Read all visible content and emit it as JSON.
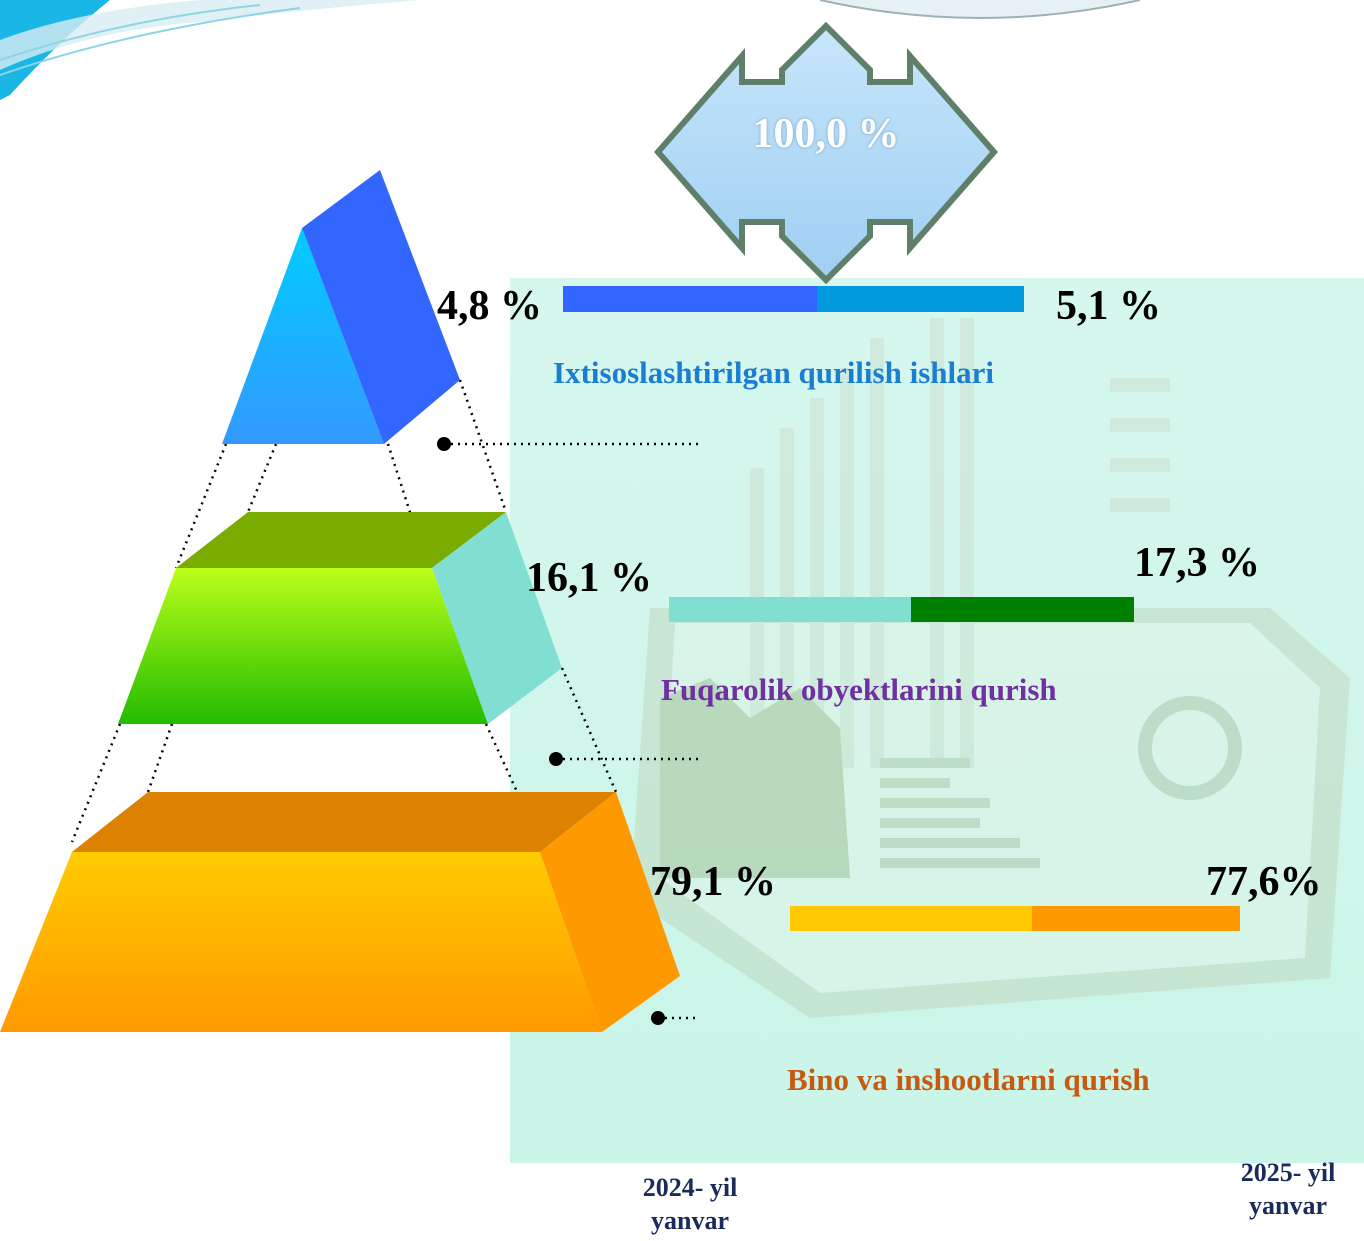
{
  "total_label": "100,0 %",
  "categories": [
    {
      "key": "special",
      "label": "Ixtisoslashtirilgan qurilish ishlari",
      "v2024": "4,8 %",
      "v2025": "5,1 %",
      "label_color": "#1a7fd0",
      "c2024": "#3366ff",
      "c2025": "#0099dd"
    },
    {
      "key": "civil",
      "label": "Fuqarolik obyektlarini qurish",
      "v2024": "16,1 %",
      "v2025": "17,3 %",
      "label_color": "#7030a0",
      "c2024": "#80dfd0",
      "c2025": "#008000"
    },
    {
      "key": "building",
      "label": "Bino va inshootlarni qurish",
      "v2024": "79,1 %",
      "v2025": "77,6%",
      "label_color": "#c55a11",
      "c2024": "#ffc800",
      "c2025": "#ff9900"
    }
  ],
  "years": {
    "y2024": {
      "line1": "2024- yil",
      "line2": "yanvar"
    },
    "y2025": {
      "line1": "2025- yil",
      "line2": "yanvar"
    }
  },
  "chart_data": {
    "type": "bar",
    "categories": [
      "Ixtisoslashtirilgan qurilish ishlari",
      "Fuqarolik obyektlarini qurish",
      "Bino va inshootlarni qurish"
    ],
    "series": [
      {
        "name": "2024- yil yanvar",
        "values": [
          4.8,
          16.1,
          79.1
        ]
      },
      {
        "name": "2025- yil yanvar",
        "values": [
          5.1,
          17.3,
          77.6
        ]
      }
    ]
  }
}
